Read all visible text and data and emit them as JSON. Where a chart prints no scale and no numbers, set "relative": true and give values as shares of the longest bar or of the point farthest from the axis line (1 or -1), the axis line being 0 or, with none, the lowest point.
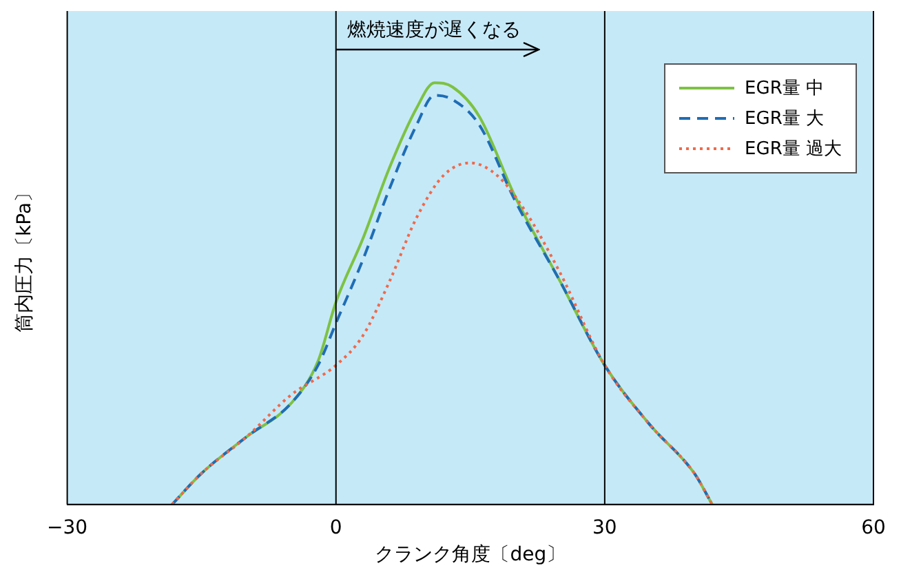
{
  "chart_data": {
    "type": "line",
    "xlabel": "クランク角度〔deg〕",
    "ylabel": "筒内圧力〔kPa〕",
    "relative": true,
    "xlim": [
      -30,
      60
    ],
    "xticks": [
      -30,
      0,
      30,
      60
    ],
    "grid": false,
    "legend": "top right",
    "marker": "none",
    "ref_lines": [
      {
        "axis": "x",
        "value": 0,
        "color": "#000000"
      },
      {
        "axis": "x",
        "value": 30,
        "color": "#000000"
      }
    ],
    "annotations": [
      "燃焼速度が遅くなる"
    ],
    "series": [
      {
        "name": "EGR量 中",
        "color": "#7dc242",
        "line_style": "solid",
        "x": [
          -18.3,
          -15,
          -10,
          -5,
          -2,
          0,
          3,
          6,
          9,
          11,
          13,
          16,
          20,
          25,
          30,
          35,
          40,
          42
        ],
        "values": [
          0,
          0.074,
          0.16,
          0.24,
          0.34,
          0.48,
          0.63,
          0.8,
          0.94,
          1,
          0.99,
          0.92,
          0.73,
          0.53,
          0.33,
          0.19,
          0.074,
          0
        ]
      },
      {
        "name": "EGR量 大",
        "color": "#1f6db5",
        "line_style": "dashed",
        "x": [
          -18.3,
          -15,
          -10,
          -5,
          -2,
          0,
          3,
          6,
          9,
          11,
          13,
          16,
          20,
          25,
          30,
          35,
          40,
          42
        ],
        "values": [
          0,
          0.074,
          0.16,
          0.24,
          0.33,
          0.43,
          0.58,
          0.75,
          0.9,
          0.97,
          0.96,
          0.9,
          0.72,
          0.53,
          0.33,
          0.19,
          0.074,
          0
        ]
      },
      {
        "name": "EGR量 過大",
        "color": "#f0694a",
        "line_style": "dotted",
        "x": [
          -18.3,
          -15,
          -10,
          -5,
          0,
          3,
          6,
          9,
          12,
          15,
          18,
          21,
          25,
          30,
          35,
          40,
          42
        ],
        "values": [
          0,
          0.074,
          0.16,
          0.26,
          0.33,
          0.4,
          0.53,
          0.68,
          0.78,
          0.81,
          0.78,
          0.7,
          0.55,
          0.33,
          0.19,
          0.074,
          0
        ]
      }
    ]
  }
}
